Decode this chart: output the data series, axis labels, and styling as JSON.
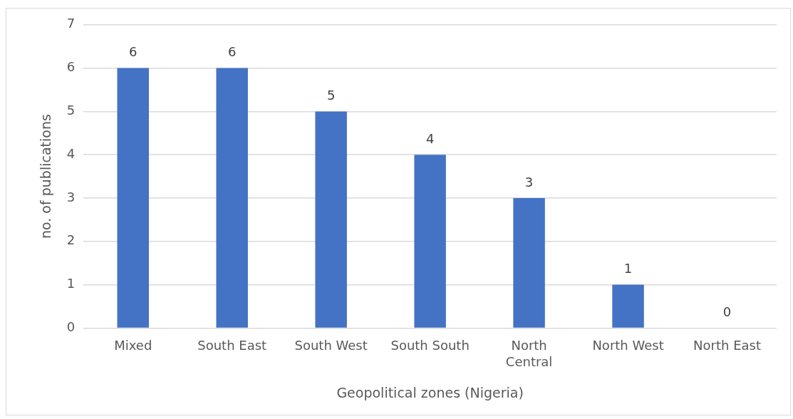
{
  "chart_data": {
    "type": "bar",
    "categories": [
      "Mixed",
      "South East",
      "South West",
      "South South",
      "North Central",
      "North West",
      "North East"
    ],
    "values": [
      6,
      6,
      5,
      4,
      3,
      1,
      0
    ],
    "color": "#4472c4",
    "xlabel": "Geopolitical zones (Nigeria)",
    "ylabel": "no. of publications",
    "ylim": [
      0,
      7
    ],
    "yticks": [
      0,
      1,
      2,
      3,
      4,
      5,
      6,
      7
    ],
    "grid": "y",
    "data_labels": true
  }
}
